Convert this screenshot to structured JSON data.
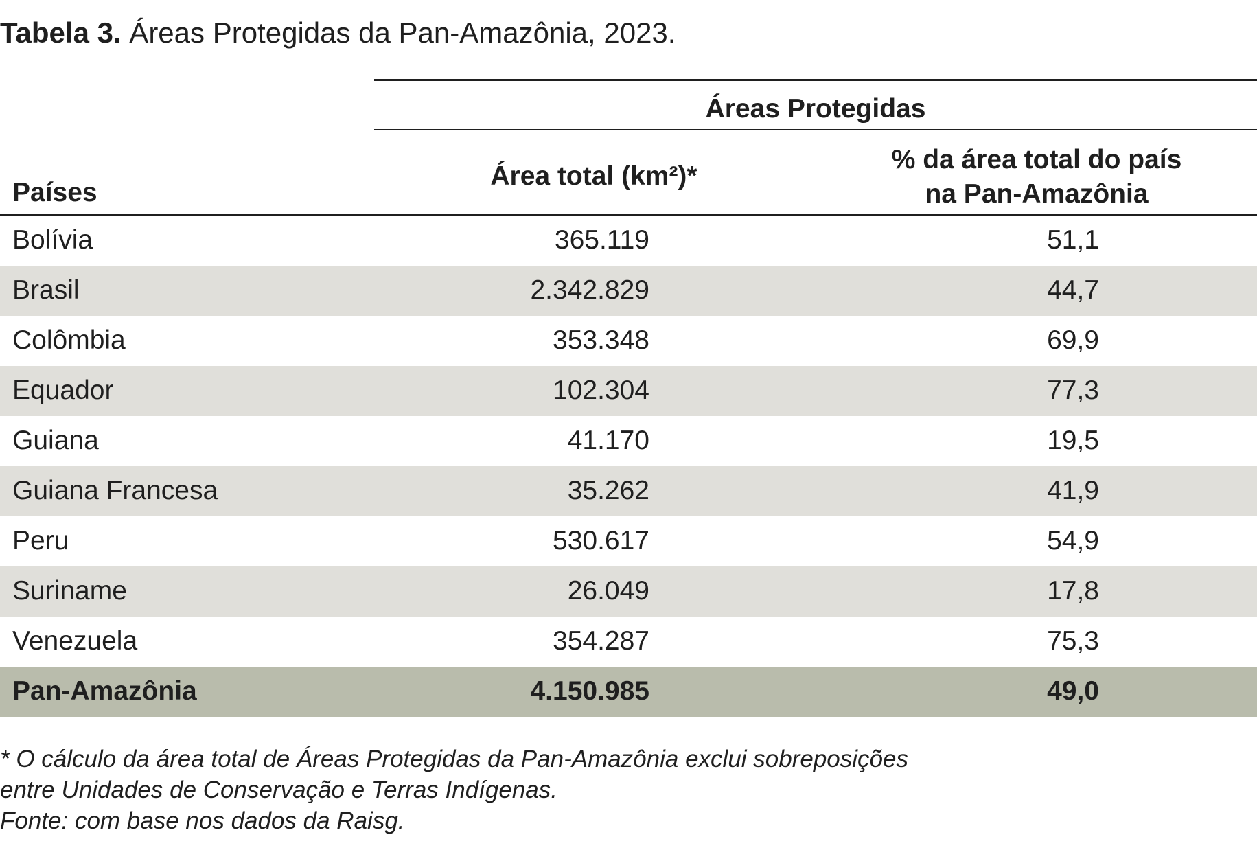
{
  "caption": {
    "label": "Tabela 3.",
    "text": " Áreas Protegidas da Pan-Amazônia, 2023."
  },
  "table": {
    "group_header": "Áreas Protegidas",
    "col_country": "Países",
    "col_area": "Área total (km²)*",
    "col_pct_line1": "% da área total do país",
    "col_pct_line2": "na Pan-Amazônia",
    "rows": [
      {
        "country": "Bolívia",
        "area": "365.119",
        "pct": "51,1"
      },
      {
        "country": "Brasil",
        "area": "2.342.829",
        "pct": "44,7"
      },
      {
        "country": "Colômbia",
        "area": "353.348",
        "pct": "69,9"
      },
      {
        "country": "Equador",
        "area": "102.304",
        "pct": "77,3"
      },
      {
        "country": "Guiana",
        "area": "41.170",
        "pct": "19,5"
      },
      {
        "country": "Guiana Francesa",
        "area": "35.262",
        "pct": "41,9"
      },
      {
        "country": "Peru",
        "area": "530.617",
        "pct": "54,9"
      },
      {
        "country": "Suriname",
        "area": "26.049",
        "pct": "17,8"
      },
      {
        "country": "Venezuela",
        "area": "354.287",
        "pct": "75,3"
      }
    ],
    "total": {
      "country": "Pan-Amazônia",
      "area": "4.150.985",
      "pct": "49,0"
    }
  },
  "notes": {
    "line1": "* O cálculo da área total de Áreas Protegidas da Pan-Amazônia exclui sobreposições",
    "line2": "entre Unidades de Conservação e Terras Indígenas.",
    "source": "Fonte: com base nos dados da Raisg."
  },
  "colors": {
    "shaded_row": "#e0dfda",
    "total_row": "#b9bcac",
    "text": "#1f1f1f"
  }
}
